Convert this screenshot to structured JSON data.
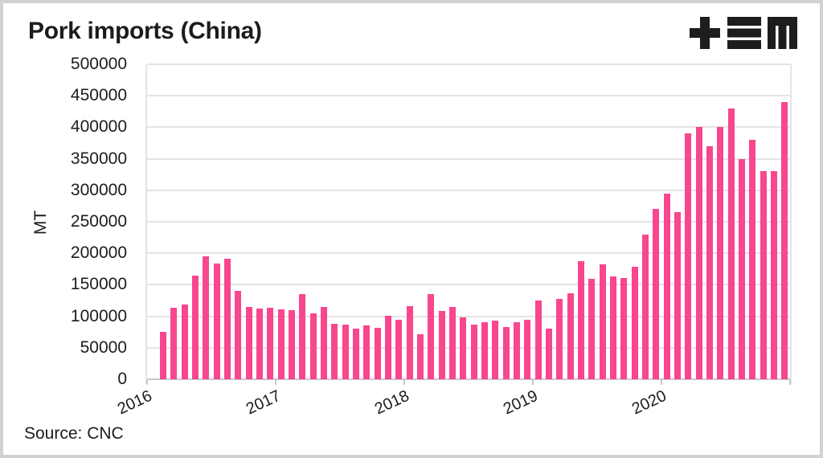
{
  "header": {
    "title": "Pork imports (China)",
    "logo_name": "tem-logo"
  },
  "source_note": "Source: CNC",
  "y_axis_title": "MT",
  "colors": {
    "bar": "#F8468F",
    "grid": "#E4E4E4",
    "axis": "#C8C8C8",
    "text": "#1C1C1C",
    "frame_border": "#D2D2D2",
    "logo": "#1D1D1B",
    "background": "#FFFFFF"
  },
  "chart_data": {
    "type": "bar",
    "title": "Pork imports (China)",
    "xlabel": "",
    "ylabel": "MT",
    "ylim": [
      0,
      500000
    ],
    "y_ticks": [
      0,
      50000,
      100000,
      150000,
      200000,
      250000,
      300000,
      350000,
      400000,
      450000,
      500000
    ],
    "grid": "horizontal",
    "legend": "none",
    "frequency": "monthly",
    "x_year_tick_labels": [
      "2016",
      "2017",
      "2018",
      "2019",
      "2020"
    ],
    "first_month_index_in_2016": 1,
    "months": [
      "Feb 2016",
      "Mar 2016",
      "Apr 2016",
      "May 2016",
      "Jun 2016",
      "Jul 2016",
      "Aug 2016",
      "Sep 2016",
      "Oct 2016",
      "Nov 2016",
      "Dec 2016",
      "Jan 2017",
      "Feb 2017",
      "Mar 2017",
      "Apr 2017",
      "May 2017",
      "Jun 2017",
      "Jul 2017",
      "Aug 2017",
      "Sep 2017",
      "Oct 2017",
      "Nov 2017",
      "Dec 2017",
      "Jan 2018",
      "Feb 2018",
      "Mar 2018",
      "Apr 2018",
      "May 2018",
      "Jun 2018",
      "Jul 2018",
      "Aug 2018",
      "Sep 2018",
      "Oct 2018",
      "Nov 2018",
      "Dec 2018",
      "Jan 2019",
      "Feb 2019",
      "Mar 2019",
      "Apr 2019",
      "May 2019",
      "Jun 2019",
      "Jul 2019",
      "Aug 2019",
      "Sep 2019",
      "Oct 2019",
      "Nov 2019",
      "Dec 2019",
      "Jan 2020",
      "Feb 2020",
      "Mar 2020",
      "Apr 2020",
      "May 2020",
      "Jun 2020",
      "Jul 2020",
      "Aug 2020",
      "Sep 2020",
      "Oct 2020",
      "Nov 2020",
      "Dec 2020"
    ],
    "values": [
      75000,
      114000,
      119000,
      164000,
      195000,
      184000,
      192000,
      140000,
      115000,
      112000,
      113000,
      111000,
      110000,
      135000,
      105000,
      115000,
      88000,
      87000,
      81000,
      85000,
      82000,
      101000,
      94000,
      116000,
      71000,
      135000,
      109000,
      115000,
      98000,
      87000,
      91000,
      93000,
      83000,
      91000,
      94000,
      125000,
      81000,
      127000,
      136000,
      188000,
      160000,
      182000,
      163000,
      161000,
      178000,
      230000,
      270000,
      295000,
      265000,
      390000,
      400000,
      370000,
      400000,
      430000,
      350000,
      380000,
      330000,
      330000,
      440000
    ]
  }
}
